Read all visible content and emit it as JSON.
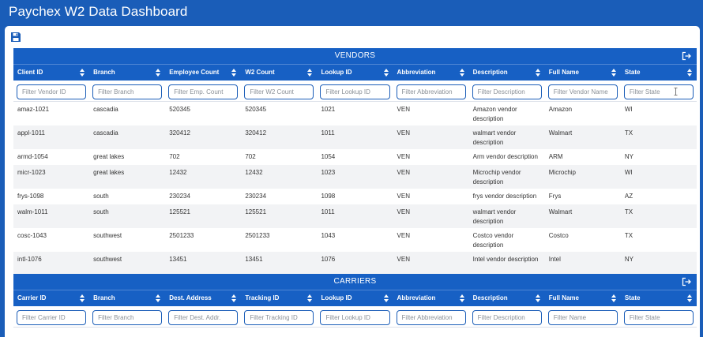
{
  "app": {
    "title": "Paychex W2 Data Dashboard"
  },
  "icons": {
    "save": "floppy-disk-icon",
    "export": "export-arrow-icon",
    "sort": "sort-arrows-icon",
    "cursor": "text-cursor-icon"
  },
  "colors": {
    "primary": "#1a5db8",
    "header": "#1760c4",
    "row_alt": "#f2f3f5"
  },
  "vendors": {
    "title": "VENDORS",
    "columns": [
      "Client ID",
      "Branch",
      "Employee Count",
      "W2 Count",
      "Lookup ID",
      "Abbreviation",
      "Description",
      "Full Name",
      "State"
    ],
    "filters": [
      "Filter Vendor ID",
      "Filter Branch",
      "Filter Emp. Count",
      "Filter W2 Count",
      "Filter Lookup ID",
      "Filter Abbreviation",
      "Filter Description",
      "Filter Vendor Name",
      "Filter State"
    ],
    "rows": [
      [
        "amaz-1021",
        "cascadia",
        "520345",
        "520345",
        "1021",
        "VEN",
        "Amazon vendor description",
        "Amazon",
        "WI"
      ],
      [
        "appl-1011",
        "cascadia",
        "320412",
        "320412",
        "1011",
        "VEN",
        "walmart vendor description",
        "Walmart",
        "TX"
      ],
      [
        "armd-1054",
        "great lakes",
        "702",
        "702",
        "1054",
        "VEN",
        "Arm vendor description",
        "ARM",
        "NY"
      ],
      [
        "micr-1023",
        "great lakes",
        "12432",
        "12432",
        "1023",
        "VEN",
        "Microchip vendor description",
        "Microchip",
        "WI"
      ],
      [
        "frys-1098",
        "south",
        "230234",
        "230234",
        "1098",
        "VEN",
        "frys vendor description",
        "Frys",
        "AZ"
      ],
      [
        "walm-1011",
        "south",
        "125521",
        "125521",
        "1011",
        "VEN",
        "walmart vendor description",
        "Walmart",
        "TX"
      ],
      [
        "cosc-1043",
        "southwest",
        "2501233",
        "2501233",
        "1043",
        "VEN",
        "Costco vendor description",
        "Costco",
        "TX"
      ],
      [
        "intl-1076",
        "southwest",
        "13451",
        "13451",
        "1076",
        "VEN",
        "Intel vendor description",
        "Intel",
        "NY"
      ]
    ]
  },
  "carriers": {
    "title": "CARRIERS",
    "columns": [
      "Carrier ID",
      "Branch",
      "Dest. Address",
      "Tracking ID",
      "Lookup ID",
      "Abbreviation",
      "Description",
      "Full Name",
      "State"
    ],
    "filters": [
      "Filter Carrier ID",
      "Filter Branch",
      "Filter Dest. Addr.",
      "Filter Tracking ID",
      "Filter Lookup ID",
      "Filter Abbreviation",
      "Filter Description",
      "Filter Name",
      "Filter State"
    ]
  }
}
